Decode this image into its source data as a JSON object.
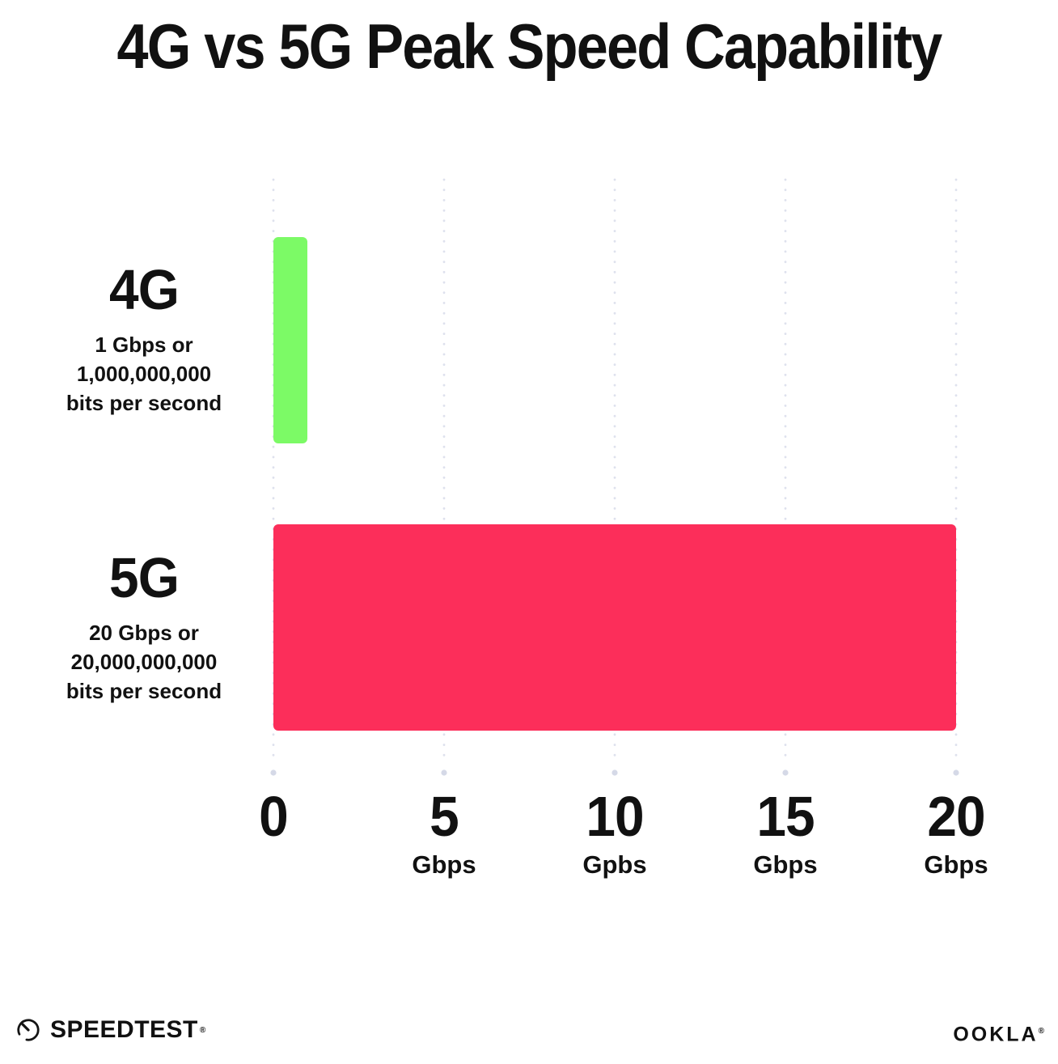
{
  "title": "4G vs 5G Peak Speed Capability",
  "chart_data": {
    "type": "bar",
    "orientation": "horizontal",
    "title": "4G vs 5G Peak Speed Capability",
    "xlabel": "",
    "ylabel": "",
    "xlim": [
      0,
      20
    ],
    "grid": "dotted vertical gridlines at each tick with a larger terminal dot at the bottom",
    "legend": "none",
    "categories": [
      "4G",
      "5G"
    ],
    "values": [
      1,
      20
    ],
    "value_unit": "Gbps",
    "bars": [
      {
        "category": "4G",
        "value_gbps": 1,
        "color": "#7CFA66",
        "label_heading": "4G",
        "label_lines": [
          "1 Gbps or",
          "1,000,000,000",
          "bits per second"
        ]
      },
      {
        "category": "5G",
        "value_gbps": 20,
        "color": "#FC2E5A",
        "label_heading": "5G",
        "label_lines": [
          "20 Gbps or",
          "20,000,000,000",
          "bits per second"
        ]
      }
    ],
    "x_ticks": [
      {
        "value": 0,
        "number": "0",
        "unit": ""
      },
      {
        "value": 5,
        "number": "5",
        "unit": "Gbps"
      },
      {
        "value": 10,
        "number": "10",
        "unit": "Gpbs"
      },
      {
        "value": 15,
        "number": "15",
        "unit": "Gbps"
      },
      {
        "value": 20,
        "number": "20",
        "unit": "Gbps"
      }
    ]
  },
  "footer": {
    "speedtest_label": "SPEEDTEST",
    "speedtest_trademark": "®",
    "ookla_label": "OOKLA",
    "ookla_trademark": "®"
  },
  "icons": {
    "speedtest": "speedometer-gauge-icon"
  },
  "colors": {
    "background": "#FFFFFF",
    "text": "#111111",
    "bar_4g": "#7CFA66",
    "bar_5g": "#FC2E5A",
    "gridline_dot": "#DEE1ED",
    "gridline_end_dot": "#D5D9E7"
  }
}
